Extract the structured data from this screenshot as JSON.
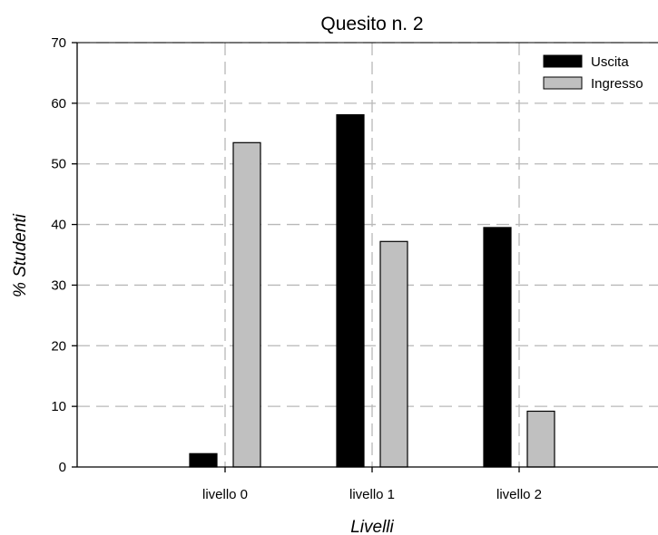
{
  "chart_data": {
    "type": "bar",
    "title": "Quesito n. 2",
    "xlabel": "Livelli",
    "ylabel": "% Studenti",
    "categories": [
      "livello 0",
      "livello 1",
      "livello 2"
    ],
    "series": [
      {
        "name": "Uscita",
        "color": "#000000",
        "values": [
          2.2,
          58.1,
          39.5
        ]
      },
      {
        "name": "Ingresso",
        "color": "#c0c0c0",
        "values": [
          53.5,
          37.2,
          9.2
        ]
      }
    ],
    "ylim": [
      0,
      70
    ],
    "yticks": [
      0,
      10,
      20,
      30,
      40,
      50,
      60,
      70
    ],
    "grid": true,
    "legend_position": "top-right"
  }
}
